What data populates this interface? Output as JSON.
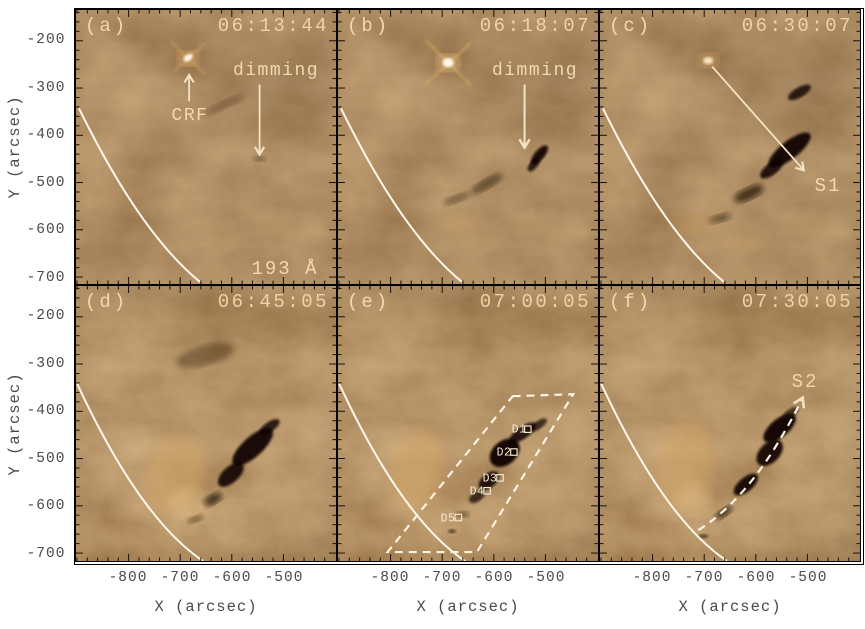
{
  "axes": {
    "x_title": "X (arcsec)",
    "y_title": "Y (arcsec)",
    "x_ticks": [
      "-800",
      "-700",
      "-600",
      "-500"
    ],
    "y_ticks": [
      "-200",
      "-300",
      "-400",
      "-500",
      "-600",
      "-700"
    ]
  },
  "panels": [
    {
      "label": "(a)",
      "time": "06:13:44",
      "crf": "CRF",
      "dimming": "dimming",
      "wavelength": "193 Å"
    },
    {
      "label": "(b)",
      "time": "06:18:07",
      "dimming": "dimming"
    },
    {
      "label": "(c)",
      "time": "06:30:07",
      "slit": "S1"
    },
    {
      "label": "(d)",
      "time": "06:45:05"
    },
    {
      "label": "(e)",
      "time": "07:00:05",
      "regions": [
        "D1",
        "D2",
        "D3",
        "D4",
        "D5"
      ]
    },
    {
      "label": "(f)",
      "time": "07:30:05",
      "slit": "S2"
    }
  ],
  "theme": {
    "image_base": "#9a5f28",
    "image_dark": "#140b03",
    "image_bright": "#fff7e8",
    "annotation_text": "#f3d7ae",
    "overlay_white": "#fdf6ea",
    "axis_text": "#4a4a4a"
  },
  "chart_data": {
    "type": "heatmap",
    "channel": "193 Å",
    "x_axis": {
      "label": "X (arcsec)",
      "ticks": [
        -800,
        -700,
        -600,
        -500
      ],
      "range": [
        -900,
        -400
      ]
    },
    "y_axis": {
      "label": "Y (arcsec)",
      "ticks": [
        -200,
        -300,
        -400,
        -500,
        -600,
        -700
      ],
      "range": [
        -715,
        -135
      ]
    },
    "grid": false,
    "legend": false,
    "panels": [
      {
        "id": "a",
        "timestamp": "06:13:44",
        "annotations": [
          "CRF",
          "dimming",
          "193 Å"
        ]
      },
      {
        "id": "b",
        "timestamp": "06:18:07",
        "annotations": [
          "dimming"
        ]
      },
      {
        "id": "c",
        "timestamp": "06:30:07",
        "annotations": [
          "S1"
        ]
      },
      {
        "id": "d",
        "timestamp": "06:45:05",
        "annotations": []
      },
      {
        "id": "e",
        "timestamp": "07:00:05",
        "annotations": [
          "D1",
          "D2",
          "D3",
          "D4",
          "D5"
        ]
      },
      {
        "id": "f",
        "timestamp": "07:30:05",
        "annotations": [
          "S2"
        ]
      }
    ]
  }
}
